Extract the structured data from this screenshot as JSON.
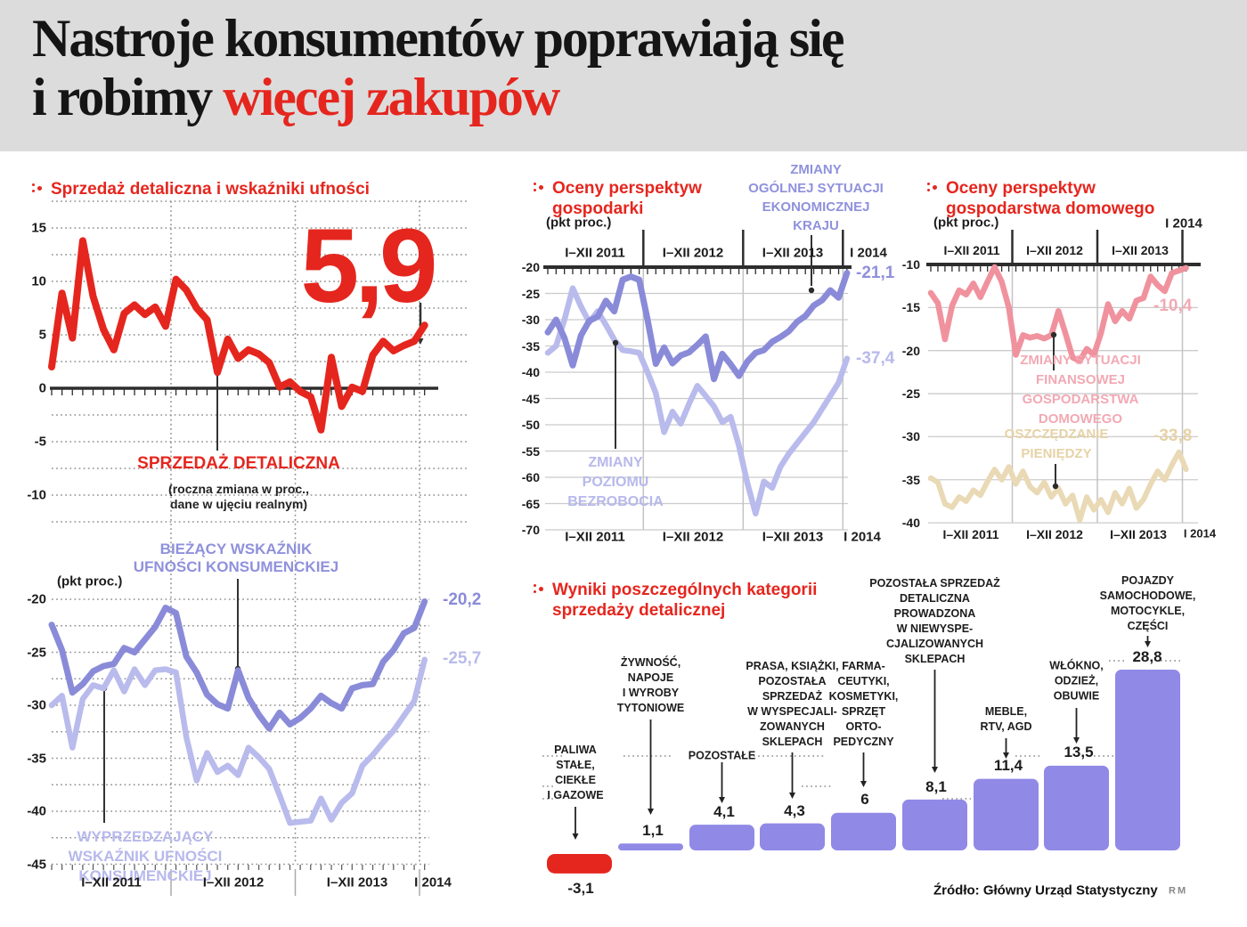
{
  "header": {
    "title_line1": "Nastroje konsumentów poprawiają się",
    "title_line2_black": "i robimy ",
    "title_line2_red": "więcej zakupów"
  },
  "colors": {
    "accent_red": "#e5261e",
    "purple_dark": "#8a8bd8",
    "purple_light": "#b9bbec",
    "pink": "#f0929e",
    "beige": "#e9d9b5",
    "bar_purple": "#9189e6",
    "header_band": "#dcdcdc"
  },
  "chart_data": [
    {
      "id": "retail-sales",
      "type": "line",
      "title": "Sprzedaż detaliczna i wskaźniki ufności",
      "ylim": [
        -12.5,
        17.5
      ],
      "yticks": [
        15,
        10,
        5,
        0,
        -5,
        -10
      ],
      "x_labels": [
        "I–XII 2011",
        "I–XII 2012",
        "I–XII 2013",
        "I 2014"
      ],
      "grid": "dotted",
      "annotation": {
        "text": "5,9"
      },
      "series": [
        {
          "name": "SPRZEDAŻ DETALICZNA",
          "note": "(roczna zmiana w proc.,\ndane w ujęciu realnym)",
          "color": "#e5261e",
          "label_color": "#e5261e",
          "values": [
            2.0,
            8.9,
            4.7,
            13.8,
            8.6,
            5.5,
            3.6,
            7.0,
            7.8,
            6.9,
            7.6,
            5.8,
            10.2,
            9.2,
            7.5,
            6.4,
            1.5,
            4.6,
            2.8,
            3.6,
            3.2,
            2.4,
            0.1,
            0.6,
            -0.3,
            -0.8,
            -3.9,
            2.9,
            -1.7,
            0.1,
            -0.3,
            3.1,
            4.4,
            3.5,
            4.0,
            4.4,
            5.9
          ]
        }
      ]
    },
    {
      "id": "consumer-confidence",
      "type": "line",
      "unit": "(pkt proc.)",
      "ylim": [
        -45,
        -17.5
      ],
      "yticks": [
        -20,
        -25,
        -30,
        -35,
        -40,
        -45
      ],
      "x_labels": [
        "I–XII 2011",
        "I–XII 2012",
        "I–XII 2013",
        "I 2014"
      ],
      "grid": "dotted",
      "series": [
        {
          "name": "BIEŻĄCY WSKAŹNIK\nUFNOŚCI KONSUMENCKIEJ",
          "color": "#8a8bd8",
          "label_color": "#8f91dc",
          "end_label": "-20,2",
          "values": [
            -22.4,
            -24.8,
            -28.8,
            -28.0,
            -26.8,
            -26.3,
            -26.1,
            -24.6,
            -25.0,
            -23.8,
            -22.6,
            -20.8,
            -21.3,
            -25.4,
            -26.9,
            -29.0,
            -29.9,
            -30.3,
            -26.7,
            -29.3,
            -30.9,
            -32.2,
            -30.7,
            -31.8,
            -31.2,
            -30.3,
            -29.1,
            -29.8,
            -30.3,
            -28.4,
            -28.1,
            -28.0,
            -25.9,
            -24.8,
            -23.2,
            -22.7,
            -20.2
          ]
        },
        {
          "name": "WYPRZEDZAJĄCY\nWSKAŹNIK UFNOŚCI\nKONSUMENCKIEJ",
          "color": "#b9bbec",
          "label_color": "#b7b9ec",
          "end_label": "-25,7",
          "values": [
            -30.0,
            -29.1,
            -34.0,
            -29.4,
            -28.1,
            -28.4,
            -26.7,
            -28.7,
            -26.6,
            -28.1,
            -26.7,
            -26.6,
            -26.9,
            -33.0,
            -37.1,
            -34.5,
            -36.3,
            -35.7,
            -36.6,
            -34.0,
            -34.9,
            -36.0,
            -38.5,
            -41.1,
            -41.0,
            -40.9,
            -38.8,
            -40.8,
            -39.2,
            -38.3,
            -35.7,
            -34.7,
            -33.5,
            -32.4,
            -31.0,
            -29.6,
            -25.7
          ]
        }
      ]
    },
    {
      "id": "economy-outlook",
      "type": "line",
      "title": "Oceny perspektyw\ngospodarki",
      "unit": "(pkt proc.)",
      "ylim": [
        -70,
        -20
      ],
      "yticks": [
        -20,
        -25,
        -30,
        -35,
        -40,
        -45,
        -50,
        -55,
        -60,
        -65,
        -70
      ],
      "x_labels": [
        "I–XII 2011",
        "I–XII 2012",
        "I–XII 2013",
        "I 2014"
      ],
      "grid": "solid",
      "series": [
        {
          "name": "ZMIANY\nOGÓLNEJ SYTUACJI\nEKONOMICZNEJ\nKRAJU",
          "color": "#8a8bd8",
          "label_color": "#8f91dc",
          "end_label": "-21,1",
          "values": [
            -32.4,
            -30.0,
            -33.5,
            -38.7,
            -33.0,
            -30.2,
            -29.4,
            -26.4,
            -28.4,
            -22.4,
            -21.8,
            -22.4,
            -30.0,
            -38.4,
            -35.3,
            -38.3,
            -36.8,
            -36.2,
            -34.8,
            -33.2,
            -41.3,
            -36.5,
            -38.5,
            -40.7,
            -38.0,
            -36.3,
            -35.8,
            -34.2,
            -33.3,
            -32.2,
            -30.4,
            -29.3,
            -27.3,
            -26.3,
            -24.4,
            -25.8,
            -21.1
          ]
        },
        {
          "name": "ZMIANY\nPOZIOMU\nBEZROBOCIA",
          "color": "#b9bbec",
          "label_color": "#b7b9ec",
          "end_label": "-37,4",
          "values": [
            -36.3,
            -35.0,
            -30.0,
            -24.0,
            -27.5,
            -30.5,
            -28.4,
            -31.0,
            -33.8,
            -35.8,
            -36.0,
            -36.3,
            -40.0,
            -44.0,
            -51.4,
            -47.5,
            -49.8,
            -46.0,
            -42.6,
            -44.5,
            -46.5,
            -49.5,
            -48.5,
            -54.0,
            -61.0,
            -66.9,
            -60.8,
            -62.0,
            -58.0,
            -55.5,
            -53.5,
            -51.5,
            -49.5,
            -47.0,
            -44.5,
            -42.0,
            -37.4
          ]
        }
      ]
    },
    {
      "id": "household-outlook",
      "type": "line",
      "title": "Oceny perspektyw\ngospodarstwa domowego",
      "unit": "(pkt proc.)",
      "top_right_label": "I 2014",
      "ylim": [
        -40,
        -10
      ],
      "yticks": [
        -10,
        -15,
        -20,
        -25,
        -30,
        -35,
        -40
      ],
      "x_labels": [
        "I–XII 2011",
        "I–XII 2012",
        "I–XII 2013",
        "I 2014"
      ],
      "grid": "solid",
      "series": [
        {
          "name": "ZMIANY SYTUACJI FINANSOWEJ\nGOSPODARSTWA DOMOWEGO",
          "color": "#f0929e",
          "label_color": "#f2a9b3",
          "end_label": "-10,4",
          "values": [
            -13.3,
            -14.5,
            -18.7,
            -14.8,
            -13.0,
            -13.5,
            -12.2,
            -13.8,
            -12.0,
            -10.3,
            -12.0,
            -15.0,
            -20.5,
            -18.2,
            -18.5,
            -18.3,
            -18.6,
            -18.2,
            -15.4,
            -18.0,
            -20.8,
            -21.2,
            -19.8,
            -20.5,
            -18.0,
            -14.6,
            -16.6,
            -15.4,
            -16.3,
            -14.2,
            -13.9,
            -11.4,
            -12.4,
            -13.1,
            -11.0,
            -10.7,
            -10.4
          ]
        },
        {
          "name": "OSZCZĘDZANIE\nPIENIĘDZY",
          "color": "#e9d9b5",
          "label_color": "#e6d2a6",
          "end_label": "-33,8",
          "values": [
            -34.8,
            -35.3,
            -37.8,
            -38.2,
            -37.0,
            -37.5,
            -36.2,
            -36.8,
            -35.2,
            -33.8,
            -35.0,
            -33.5,
            -35.5,
            -34.0,
            -35.8,
            -36.5,
            -35.3,
            -37.0,
            -36.0,
            -37.8,
            -36.8,
            -39.7,
            -37.0,
            -38.5,
            -37.3,
            -38.8,
            -36.5,
            -37.8,
            -36.0,
            -38.3,
            -37.3,
            -35.5,
            -34.0,
            -35.0,
            -33.3,
            -31.8,
            -33.8
          ]
        }
      ]
    },
    {
      "id": "retail-categories",
      "type": "bar",
      "title": "Wyniki poszczególnych kategorii\nsprzedaży detalicznej",
      "categories": [
        "PALIWA\nSTAŁE,\nCIEKŁE\nI GAZOWE",
        "ŻYWNOŚĆ,\nNAPOJE\nI WYROBY\nTYTONIOWE",
        "POZOSTAŁE",
        "PRASA, KSIĄŻKI,\nPOZOSTAŁA\nSPRZEDAŻ\nW WYSPECJALI-\nZOWANYCH\nSKLEPACH",
        "FARMA-\nCEUTYKI,\nKOSMETYKI,\nSPRZĘT\nORTO-\nPEDYCZNY",
        "POZOSTAŁA SPRZEDAŻ\nDETALICZNA\nPROWADZONA\nW NIEWYSPE-\nCJALIZOWANYCH\nSKLEPACH",
        "MEBLE,\nRTV, AGD",
        "WŁÓKNO,\nODZIEŻ,\nOBUWIE",
        "POJAZDY\nSAMOCHODOWE,\nMOTOCYKLE,\nCZĘŚCI"
      ],
      "values": [
        -3.1,
        1.1,
        4.1,
        4.3,
        6,
        8.1,
        11.4,
        13.5,
        28.8
      ],
      "value_labels": [
        "-3,1",
        "1,1",
        "4,1",
        "4,3",
        "6",
        "8,1",
        "11,4",
        "13,5",
        "28,8"
      ],
      "bar_color": "#9189e6",
      "negative_color": "#e5261e"
    }
  ],
  "footer": {
    "source": "Źródło: Główny Urząd Statystyczny",
    "credit": "RM"
  }
}
